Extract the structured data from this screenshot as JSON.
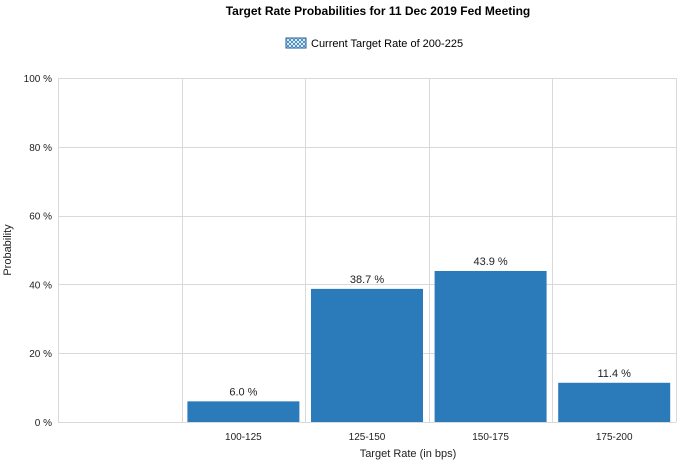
{
  "chart_data": {
    "type": "bar",
    "title": "Target Rate Probabilities for 11 Dec 2019 Fed Meeting",
    "legend": {
      "label": "Current Target Rate of 200-225",
      "placement": "top-center"
    },
    "xlabel": "Target Rate (in bps)",
    "ylabel": "Probability",
    "categories": [
      "",
      "100-125",
      "125-150",
      "150-175",
      "175-200"
    ],
    "values": [
      0,
      6.0,
      38.7,
      43.9,
      11.4
    ],
    "data_labels": [
      "",
      "6.0 %",
      "38.7 %",
      "43.9 %",
      "11.4 %"
    ],
    "ylim": [
      0,
      100
    ],
    "yticks": [
      0,
      20,
      40,
      60,
      80,
      100
    ],
    "ytick_labels": [
      "0 %",
      "20 %",
      "40 %",
      "60 %",
      "80 %",
      "100 %"
    ],
    "grid": true,
    "bar_color": "#2b7bba"
  }
}
